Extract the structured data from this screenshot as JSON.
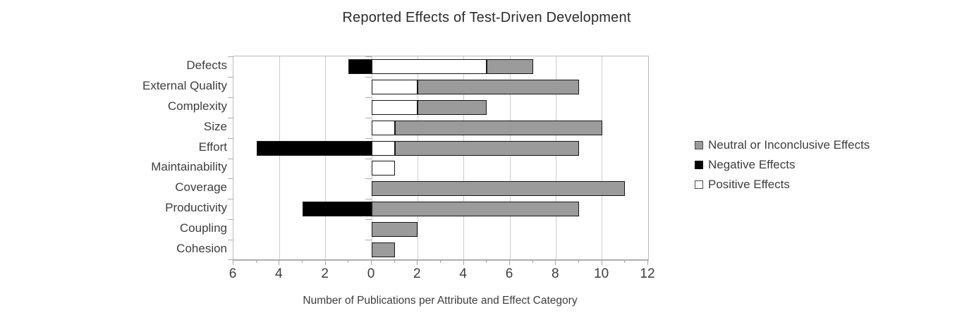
{
  "chart_data": {
    "type": "bar",
    "orientation": "horizontal-diverging-stacked",
    "title": "Reported Effects of Test-Driven Development",
    "xlabel": "Number of Publications per Attribute and Effect Category",
    "categories": [
      "Defects",
      "External Quality",
      "Complexity",
      "Size",
      "Effort",
      "Maintainability",
      "Coverage",
      "Productivity",
      "Coupling",
      "Cohesion"
    ],
    "series": [
      {
        "name": "Positive Effects",
        "color": "#ffffff",
        "direction": "right",
        "stack_order": 1,
        "values": [
          5,
          2,
          2,
          1,
          1,
          1,
          0,
          0,
          0,
          0
        ]
      },
      {
        "name": "Neutral or Inconclusive Effects",
        "color": "#9b9b9b",
        "direction": "right",
        "stack_order": 2,
        "values": [
          2,
          7,
          3,
          9,
          8,
          0,
          11,
          9,
          2,
          1
        ]
      },
      {
        "name": "Negative Effects",
        "color": "#000000",
        "direction": "left",
        "stack_order": 1,
        "values": [
          1,
          0,
          0,
          0,
          5,
          0,
          0,
          3,
          0,
          0
        ]
      }
    ],
    "x_axis": {
      "min": -6,
      "max": 12,
      "major_step": 2,
      "minor_step": 1,
      "tick_labels": [
        "6",
        "4",
        "2",
        "0",
        "2",
        "4",
        "6",
        "8",
        "10",
        "12"
      ],
      "grid": true
    },
    "legend": {
      "position": "right",
      "items": [
        {
          "label": "Neutral or Inconclusive Effects",
          "color": "#9b9b9b"
        },
        {
          "label": "Negative Effects",
          "color": "#000000"
        },
        {
          "label": "Positive Effects",
          "color": "#ffffff"
        }
      ]
    },
    "colors": {
      "gridline": "#cdcdcd",
      "plot_border": "#b9b9b9",
      "axis_line": "#a3a3a3",
      "bar_border": "#161616",
      "text": "#3d3d3d"
    }
  }
}
